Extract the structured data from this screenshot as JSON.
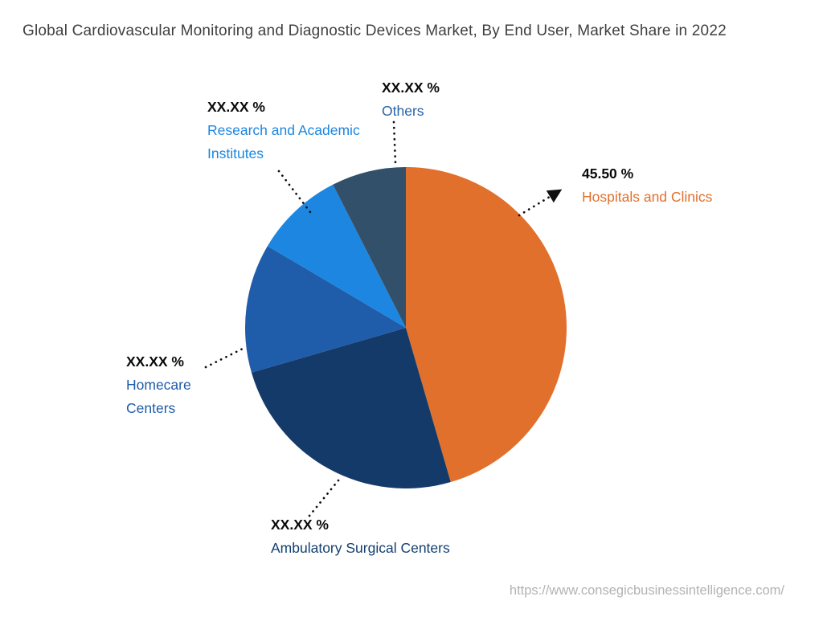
{
  "header": {
    "title": "Global Cardiovascular Monitoring and Diagnostic Devices Market, By End User, Market Share in 2022"
  },
  "footer": {
    "url": "https://www.consegicbusinessintelligence.com/"
  },
  "chart_data": {
    "type": "pie",
    "title": "Global Cardiovascular Monitoring and Diagnostic Devices Market, By End User, Market Share in 2022",
    "unit": "%",
    "start_angle_deg": 0,
    "direction": "clockwise",
    "legend_position": "callout-labels",
    "slices": [
      {
        "label": "Hospitals and Clinics",
        "display_value": "45.50 %",
        "value": 45.5,
        "color": "#e2702d",
        "label_color": "#e2702d"
      },
      {
        "label": "Ambulatory Surgical Centers",
        "display_value": "XX.XX %",
        "value": 25.0,
        "color": "#143a69",
        "label_color": "#14406f"
      },
      {
        "label": "Homecare Centers",
        "display_value": "XX.XX %",
        "value": 13.0,
        "color": "#1f5ca9",
        "label_color": "#1f5ca9"
      },
      {
        "label": "Research and Academic Institutes",
        "display_value": "XX.XX %",
        "value": 9.0,
        "color": "#1c86e0",
        "label_color": "#1c86e0"
      },
      {
        "label": "Others",
        "display_value": "XX.XX %",
        "value": 7.5,
        "color": "#33506b",
        "label_color": "#2763a8"
      }
    ]
  }
}
